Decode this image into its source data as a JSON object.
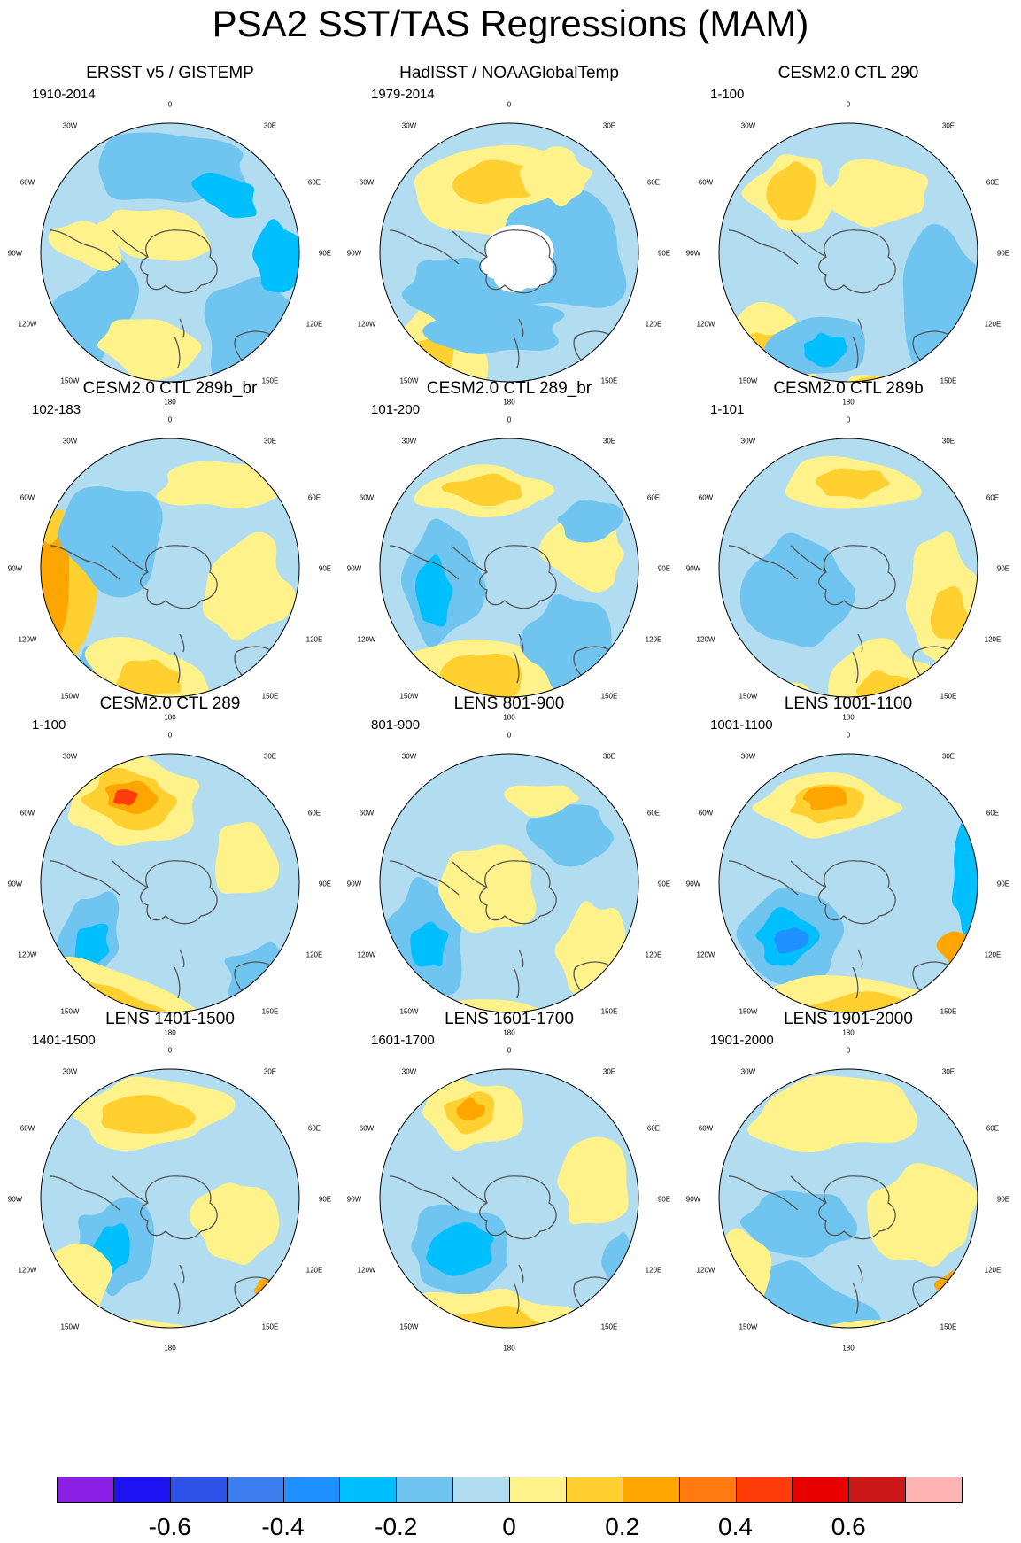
{
  "title": "PSA2 SST/TAS Regressions (MAM)",
  "map_labels": {
    "top": "0",
    "bottom": "180",
    "left": [
      "30W",
      "60W",
      "90W",
      "120W",
      "150W"
    ],
    "right": [
      "30E",
      "60E",
      "90E",
      "120E",
      "150E"
    ]
  },
  "panels": [
    {
      "title": "ERSST v5 / GISTEMP",
      "period": "1910-2014"
    },
    {
      "title": "HadISST / NOAAGlobalTemp",
      "period": "1979-2014"
    },
    {
      "title": "CESM2.0 CTL 290",
      "period": "1-100"
    },
    {
      "title": "CESM2.0 CTL 289b_br",
      "period": "102-183"
    },
    {
      "title": "CESM2.0 CTL 289_br",
      "period": "101-200"
    },
    {
      "title": "CESM2.0 CTL 289b",
      "period": "1-101"
    },
    {
      "title": "CESM2.0 CTL 289",
      "period": "1-100"
    },
    {
      "title": "LENS 801-900",
      "period": "801-900"
    },
    {
      "title": "LENS 1001-1100",
      "period": "1001-1100"
    },
    {
      "title": "LENS 1401-1500",
      "period": "1401-1500"
    },
    {
      "title": "LENS 1601-1700",
      "period": "1601-1700"
    },
    {
      "title": "LENS 1901-2000",
      "period": "1901-2000"
    }
  ],
  "colorbar": {
    "colors": [
      "#8b1fe6",
      "#1c12f2",
      "#2e52e8",
      "#3c7eed",
      "#1e90ff",
      "#00bfff",
      "#70c4f0",
      "#b2dcf0",
      "#fff28a",
      "#ffd030",
      "#ffa500",
      "#ff7a10",
      "#ff3c0a",
      "#e80000",
      "#cc1818",
      "#ffb4b4"
    ],
    "tick_labels": [
      "-0.6",
      "-0.4",
      "-0.2",
      "0",
      "0.2",
      "0.4",
      "0.6"
    ],
    "tick_values": [
      -0.6,
      -0.4,
      -0.2,
      0,
      0.2,
      0.4,
      0.6
    ],
    "min": -0.8,
    "max": 0.8
  }
}
